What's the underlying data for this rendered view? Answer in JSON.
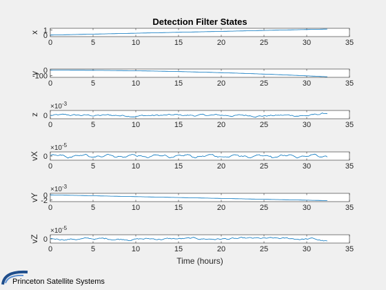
{
  "chart_data": {
    "type": "line",
    "title": "Detection Filter States",
    "xlabel": "Time (hours)",
    "xlim": [
      0,
      35
    ],
    "xticks": [
      "0",
      "5",
      "10",
      "15",
      "20",
      "25",
      "30",
      "35"
    ],
    "line_color": "#0072bd",
    "subplots": [
      {
        "ylabel": "x",
        "ylim": [
          -0.3,
          1.3
        ],
        "yticks": [
          "1",
          "0"
        ],
        "exponent": "",
        "kind": "linear",
        "start": 0,
        "end": 1.15,
        "noise": 0
      },
      {
        "ylabel": "y",
        "ylim": [
          -130,
          20
        ],
        "yticks": [
          "0",
          "-100"
        ],
        "exponent": "",
        "kind": "quad",
        "start": 0,
        "end": -120,
        "noise": 0
      },
      {
        "ylabel": "z",
        "ylim": [
          -2,
          3
        ],
        "yticks": [
          "0"
        ],
        "exponent": "×10^-3",
        "kind": "noise",
        "start": 0,
        "end": 0,
        "noise": 0.5,
        "tail": 1.4
      },
      {
        "ylabel": "vX",
        "ylim": [
          -3,
          3
        ],
        "yticks": [
          "0"
        ],
        "exponent": "×10^-5",
        "kind": "wave",
        "start": 0,
        "end": 0,
        "noise": 0.35
      },
      {
        "ylabel": "vY",
        "ylim": [
          -2.6,
          0.6
        ],
        "yticks": [
          "0",
          "-2"
        ],
        "exponent": "×10^-3",
        "kind": "linear",
        "start": 0,
        "end": -2.2,
        "noise": 0
      },
      {
        "ylabel": "vZ",
        "ylim": [
          -3,
          3
        ],
        "yticks": [
          "0"
        ],
        "exponent": "×10^-5",
        "kind": "noise",
        "start": 0,
        "end": 0,
        "noise": 0.6,
        "taildrop": -2
      }
    ],
    "t_end": 32.4
  },
  "brand": {
    "name": "Princeton Satellite Systems",
    "logo_color": "#1f4e8c"
  }
}
